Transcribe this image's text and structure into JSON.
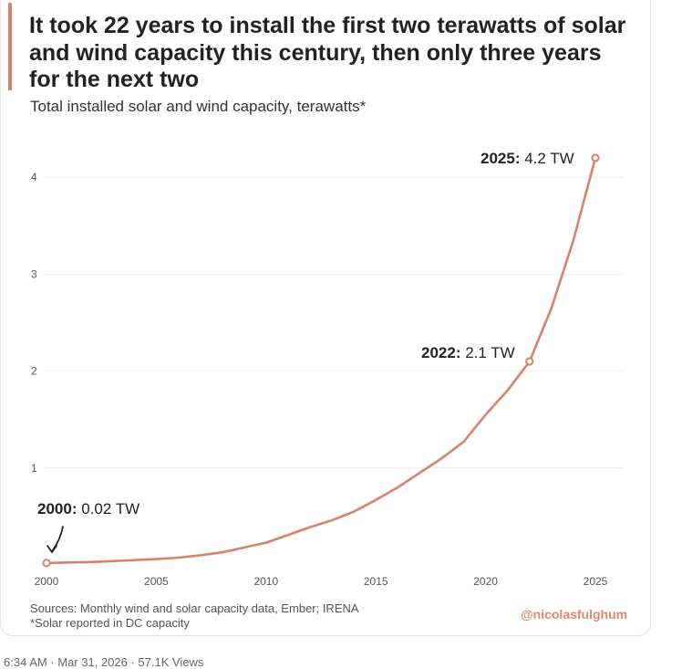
{
  "title": "It took 22 years to install the first two terawatts of solar and wind capacity this century, then only three years for the next two",
  "subtitle": "Total installed solar and wind capacity, terawatts*",
  "source_line_1": "Sources: Monthly wind and solar capacity data, Ember; IRENA",
  "source_line_2": "*Solar reported in DC capacity",
  "handle": "@nicolasfulghum",
  "tweet_meta": "6:34 AM · Mar 31, 2026 · 57.1K Views",
  "colors": {
    "series": "#d9826a",
    "handle": "#e08a6d",
    "accent_bar": "#d9826a"
  },
  "chart_data": {
    "type": "line",
    "title": "It took 22 years to install the first two terawatts of solar and wind capacity this century, then only three years for the next two",
    "subtitle": "Total installed solar and wind capacity, terawatts*",
    "xlabel": "",
    "ylabel": "",
    "xlim": [
      2000,
      2025
    ],
    "ylim": [
      0,
      4.2
    ],
    "x_ticks": [
      2000,
      2005,
      2010,
      2015,
      2020,
      2025
    ],
    "y_ticks": [
      1,
      2,
      3,
      4
    ],
    "grid": true,
    "legend": "none",
    "series": [
      {
        "x": [
          2000,
          2001,
          2002,
          2003,
          2004,
          2005,
          2006,
          2007,
          2008,
          2009,
          2010,
          2011,
          2012,
          2013,
          2014,
          2015,
          2016,
          2017,
          2018,
          2019,
          2020,
          2021,
          2022,
          2023,
          2024,
          2025
        ],
        "values": [
          0.02,
          0.025,
          0.03,
          0.04,
          0.05,
          0.06,
          0.075,
          0.1,
          0.13,
          0.18,
          0.23,
          0.31,
          0.39,
          0.46,
          0.55,
          0.67,
          0.8,
          0.95,
          1.1,
          1.27,
          1.55,
          1.8,
          2.1,
          2.65,
          3.35,
          4.2
        ]
      }
    ],
    "annotations": [
      {
        "year_label": "2000:",
        "value_label": "0.02 TW",
        "x": 2000,
        "y": 0.02
      },
      {
        "year_label": "2022:",
        "value_label": "2.1 TW",
        "x": 2022,
        "y": 2.1
      },
      {
        "year_label": "2025:",
        "value_label": "4.2 TW",
        "x": 2025,
        "y": 4.2
      }
    ]
  }
}
